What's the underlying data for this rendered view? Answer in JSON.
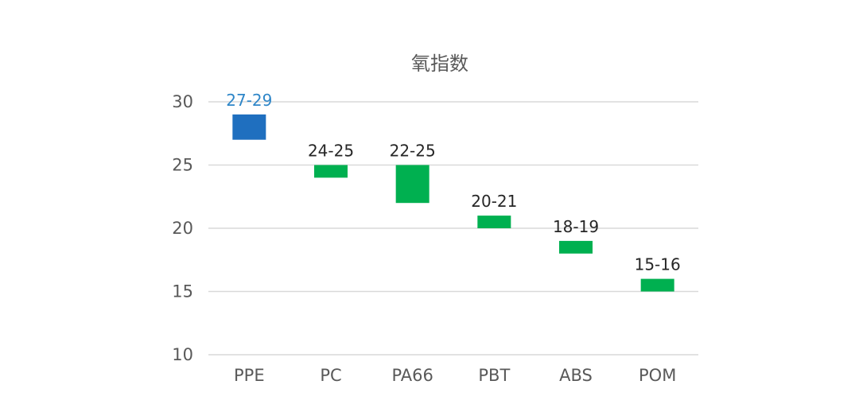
{
  "chart_data": {
    "type": "bar",
    "title": "氧指数",
    "categories": [
      "PPE",
      "PC",
      "PA66",
      "PBT",
      "ABS",
      "POM"
    ],
    "ranges": [
      {
        "low": 27,
        "high": 29,
        "label": "27-29",
        "color": "#1f6fbf",
        "label_color": "#2e86c8"
      },
      {
        "low": 24,
        "high": 25,
        "label": "24-25",
        "color": "#00b050",
        "label_color": "#262626"
      },
      {
        "low": 22,
        "high": 25,
        "label": "22-25",
        "color": "#00b050",
        "label_color": "#262626"
      },
      {
        "low": 20,
        "high": 21,
        "label": "20-21",
        "color": "#00b050",
        "label_color": "#262626"
      },
      {
        "low": 18,
        "high": 19,
        "label": "18-19",
        "color": "#00b050",
        "label_color": "#262626"
      },
      {
        "low": 15,
        "high": 16,
        "label": "15-16",
        "color": "#00b050",
        "label_color": "#262626"
      }
    ],
    "ylim": [
      10,
      30
    ],
    "yticks": [
      10,
      15,
      20,
      25,
      30
    ],
    "grid": true,
    "xlabel": "",
    "ylabel": ""
  }
}
